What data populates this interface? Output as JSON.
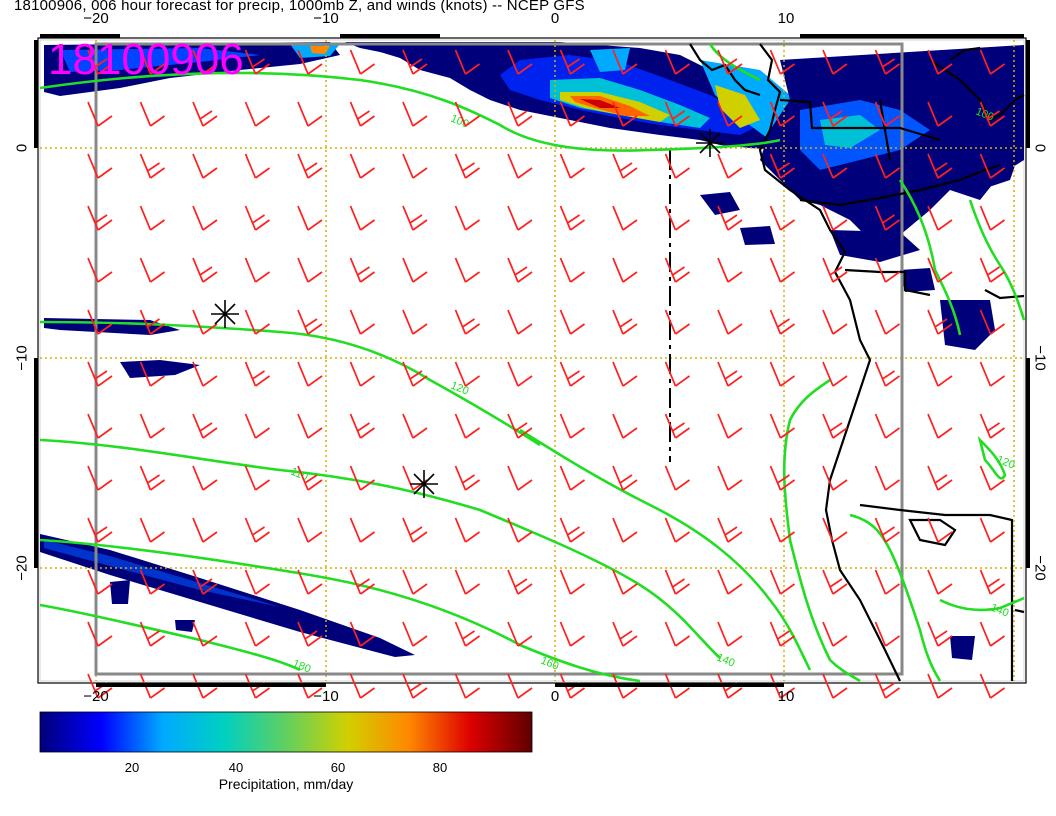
{
  "header": {
    "title": "18100906, 006 hour forecast for precip, 1000mb Z, and winds (knots) -- NCEP GFS",
    "stamp": "18100906"
  },
  "axes": {
    "lon_ticks_top": [
      "−20",
      "−10",
      "0",
      "10"
    ],
    "lon_ticks_bottom": [
      "−20",
      "−10",
      "0",
      "10"
    ],
    "lat_ticks_left": [
      "0",
      "−10",
      "−20"
    ],
    "lat_ticks_right": [
      "0",
      "−10",
      "−20"
    ]
  },
  "contours": {
    "color": "#22dd22",
    "labels": [
      "100",
      "120",
      "110",
      "160",
      "140",
      "180",
      "100",
      "140",
      "120"
    ]
  },
  "colorbar": {
    "title": "Precipitation, mm/day",
    "tick_labels": [
      "20",
      "40",
      "60",
      "80"
    ],
    "stops": [
      "#00007a",
      "#0000ff",
      "#00aaff",
      "#00d0c0",
      "#60d060",
      "#d0d000",
      "#ff8800",
      "#dd0000",
      "#600000"
    ]
  },
  "colors": {
    "barbs": "#ff2020",
    "coast": "#000000",
    "grid": "#d4b000",
    "stamp": "#ff00ff"
  }
}
